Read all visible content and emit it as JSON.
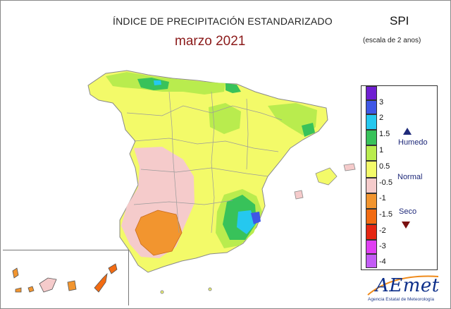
{
  "header": {
    "title": "ÍNDICE DE PRECIPITACIÓN ESTANDARIZADO",
    "subtitle": "marzo 2021",
    "index_name": "SPI",
    "scale_note": "(escala de 2 anos)"
  },
  "legend": {
    "classes": [
      {
        "label": "3",
        "color": "#6f1fd2"
      },
      {
        "label": "2",
        "color": "#3f57e6"
      },
      {
        "label": "1.5",
        "color": "#25c8ef"
      },
      {
        "label": "1",
        "color": "#38c25a"
      },
      {
        "label": "0.5",
        "color": "#b9ec4e"
      },
      {
        "label": "-0.5",
        "color": "#f3fa69"
      },
      {
        "label": "-1",
        "color": "#f5cbcb"
      },
      {
        "label": "-1.5",
        "color": "#f2952f"
      },
      {
        "label": "-2",
        "color": "#f26b12"
      },
      {
        "label": "-3",
        "color": "#e52612"
      },
      {
        "label": "-4",
        "color": "#e03ff2"
      },
      {
        "label": "",
        "color": "#c35cf5"
      }
    ],
    "categories": {
      "wet": "Humedo",
      "normal": "Normal",
      "dry": "Seco"
    }
  },
  "logo": {
    "name": "AEmet",
    "caption": "Agencia Estatal de Meteorología"
  }
}
